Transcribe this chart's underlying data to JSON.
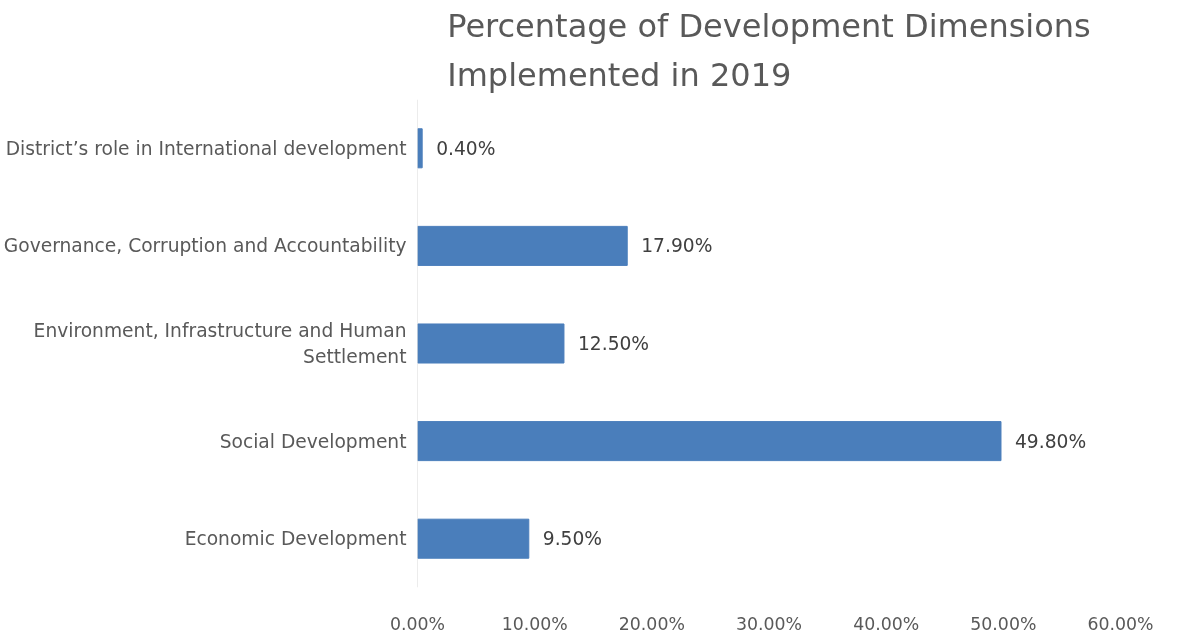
{
  "chart_data": {
    "type": "bar",
    "orientation": "horizontal",
    "title": "Percentage of Development Dimensions Implemented in 2019",
    "categories": [
      "District’s role in International development",
      "Governance, Corruption and Accountability",
      "Environment, Infrastructure and Human Settlement",
      "Social Development",
      "Economic Development"
    ],
    "values": [
      0.4,
      17.9,
      12.5,
      49.8,
      9.5
    ],
    "value_labels": [
      "0.40%",
      "17.90%",
      "12.50%",
      "49.80%",
      "9.50%"
    ],
    "color": "#4a7ebb",
    "xlim": [
      0,
      60
    ],
    "xticks": [
      {
        "value": 0,
        "label": "0.00%"
      },
      {
        "value": 10,
        "label": "10.00%"
      },
      {
        "value": 20,
        "label": "20.00%"
      },
      {
        "value": 30,
        "label": "30.00%"
      },
      {
        "value": 40,
        "label": "40.00%"
      },
      {
        "value": 50,
        "label": "50.00%"
      },
      {
        "value": 60,
        "label": "60.00%"
      }
    ],
    "grid": false
  }
}
